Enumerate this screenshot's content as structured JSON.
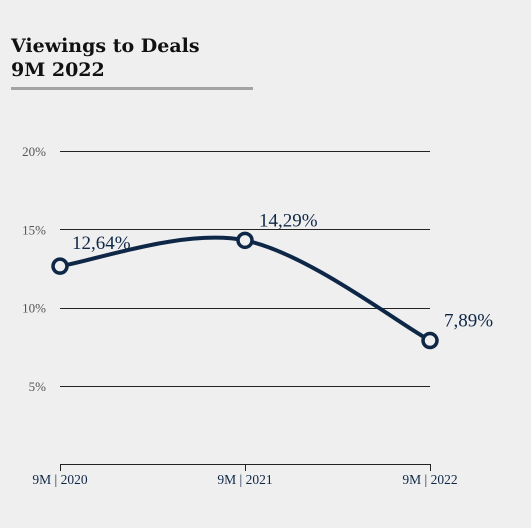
{
  "title": {
    "line1": "Viewings to Deals",
    "line2": "9M 2022"
  },
  "colors": {
    "series": "#0f2747",
    "grid": "#222222",
    "rule": "#a3a3a3",
    "background": "#efefef"
  },
  "chart_data": {
    "type": "line",
    "categories": [
      "9M | 2020",
      "9M | 2021",
      "9M | 2022"
    ],
    "series": [
      {
        "values": [
          12.64,
          14.29,
          7.89
        ],
        "labels": [
          "12,64%",
          "14,29%",
          "7,89%"
        ]
      }
    ],
    "yticks": [
      {
        "value": 5,
        "label": "5%"
      },
      {
        "value": 10,
        "label": "10%"
      },
      {
        "value": 15,
        "label": "15%"
      },
      {
        "value": 20,
        "label": "20%"
      }
    ],
    "ylim": [
      0,
      20
    ],
    "grid": true,
    "smooth": true,
    "legend": "none"
  }
}
